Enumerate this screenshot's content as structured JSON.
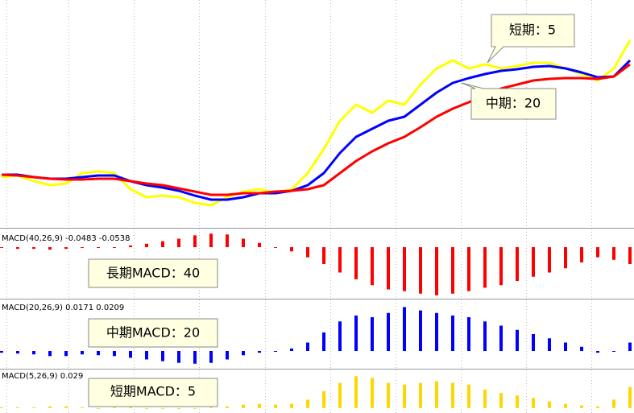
{
  "main": {
    "type": "line",
    "ylim": [
      0,
      283
    ],
    "series": [
      {
        "name": "短期：5",
        "color": "#ffff00",
        "values": [
          63,
          65,
          58,
          53,
          55,
          68,
          70,
          68,
          48,
          38,
          40,
          38,
          31,
          28,
          38,
          45,
          48,
          43,
          48,
          68,
          98,
          133,
          153,
          143,
          158,
          153,
          178,
          198,
          208,
          198,
          203,
          198,
          201,
          205,
          205,
          198,
          191,
          183,
          198,
          233
        ]
      },
      {
        "name": "中期：20",
        "color": "#0000ff",
        "values": [
          66,
          66,
          63,
          61,
          61,
          63,
          65,
          65,
          58,
          53,
          50,
          46,
          40,
          35,
          35,
          38,
          43,
          43,
          46,
          53,
          68,
          93,
          113,
          123,
          133,
          138,
          153,
          168,
          180,
          186,
          191,
          195,
          197,
          200,
          201,
          198,
          193,
          187,
          188,
          208
        ]
      },
      {
        "color": "#ff0000",
        "values": [
          66,
          65,
          63,
          61,
          60,
          60,
          61,
          61,
          58,
          55,
          53,
          49,
          45,
          41,
          41,
          43,
          43,
          45,
          46,
          48,
          53,
          68,
          83,
          95,
          105,
          113,
          125,
          138,
          148,
          156,
          165,
          173,
          178,
          183,
          185,
          186,
          186,
          185,
          188,
          203
        ]
      }
    ]
  },
  "panels": [
    {
      "type": "bar",
      "header": "MACD(40,26,9) -0.0483 -0.0538",
      "label": "長期MACD：40",
      "color": "#ff0000",
      "ylim": [
        -60,
        20
      ],
      "values": [
        0,
        -2,
        -2,
        -3,
        -2,
        -1,
        0,
        0,
        2,
        4,
        7,
        10,
        14,
        16,
        15,
        10,
        5,
        0,
        -5,
        -12,
        -20,
        -30,
        -38,
        -45,
        -50,
        -52,
        -55,
        -57,
        -55,
        -52,
        -48,
        -45,
        -40,
        -35,
        -30,
        -25,
        -18,
        -12,
        -15,
        -20
      ]
    },
    {
      "type": "bar",
      "header": "MACD(20,26,9) 0.0171 0.0209",
      "label": "中期MACD：20",
      "color": "#0000ff",
      "ylim": [
        -20,
        60
      ],
      "values": [
        -2,
        -3,
        -4,
        -6,
        -6,
        -4,
        -5,
        -6,
        -8,
        -10,
        -12,
        -14,
        -15,
        -14,
        -10,
        -5,
        -2,
        0,
        3,
        10,
        22,
        35,
        42,
        40,
        45,
        52,
        48,
        45,
        42,
        40,
        35,
        30,
        25,
        20,
        15,
        10,
        5,
        -2,
        0,
        10
      ]
    },
    {
      "type": "bar",
      "header": "MACD(5,26,9) 0.029",
      "label": "短期MACD：5",
      "color": "#ffd700",
      "ylim": [
        -5,
        45
      ],
      "values": [
        1,
        1,
        1,
        2,
        2,
        1,
        0,
        1,
        1,
        0,
        0,
        -1,
        0,
        1,
        2,
        4,
        5,
        4,
        5,
        10,
        20,
        30,
        38,
        36,
        30,
        28,
        30,
        32,
        30,
        28,
        22,
        18,
        15,
        12,
        8,
        5,
        3,
        2,
        10,
        25
      ]
    }
  ]
}
